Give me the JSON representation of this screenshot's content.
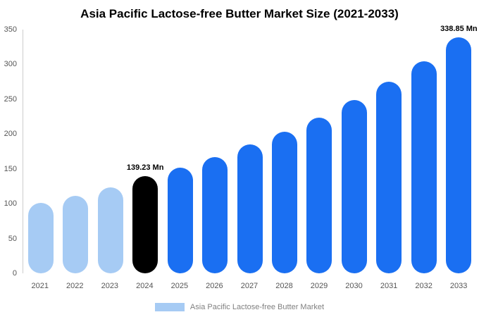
{
  "chart_data": {
    "type": "bar",
    "title": "Asia Pacific Lactose-free Butter Market Size (2021-2033)",
    "categories": [
      "2021",
      "2022",
      "2023",
      "2024",
      "2025",
      "2026",
      "2027",
      "2028",
      "2029",
      "2030",
      "2031",
      "2032",
      "2033"
    ],
    "values": [
      101,
      111,
      123,
      139.23,
      152,
      167,
      185,
      203,
      224,
      249,
      275,
      304,
      338.85
    ],
    "unit": "Mn",
    "xlabel": "",
    "ylabel": "",
    "ylim": [
      0,
      350
    ],
    "yticks": [
      0,
      50,
      100,
      150,
      200,
      250,
      300,
      350
    ],
    "grid": false,
    "bar_colors": [
      "#a6cbf4",
      "#a6cbf4",
      "#a6cbf4",
      "#000000",
      "#1a6ff2",
      "#1a6ff2",
      "#1a6ff2",
      "#1a6ff2",
      "#1a6ff2",
      "#1a6ff2",
      "#1a6ff2",
      "#1a6ff2",
      "#1a6ff2"
    ],
    "annotations": [
      {
        "category": "2024",
        "text": "139.23 Mn"
      },
      {
        "category": "2033",
        "text": "338.85 Mn"
      }
    ],
    "legend": {
      "label": "Asia Pacific Lactose-free Butter Market",
      "position": "bottom",
      "swatch_color": "#a6cbf4"
    },
    "colors": {
      "historical_bar": "#a6cbf4",
      "highlight_bar": "#000000",
      "forecast_bar": "#1a6ff2",
      "axis_text": "#555555",
      "legend_text": "#808080",
      "axis_line": "#cccccc",
      "background": "#ffffff"
    }
  }
}
